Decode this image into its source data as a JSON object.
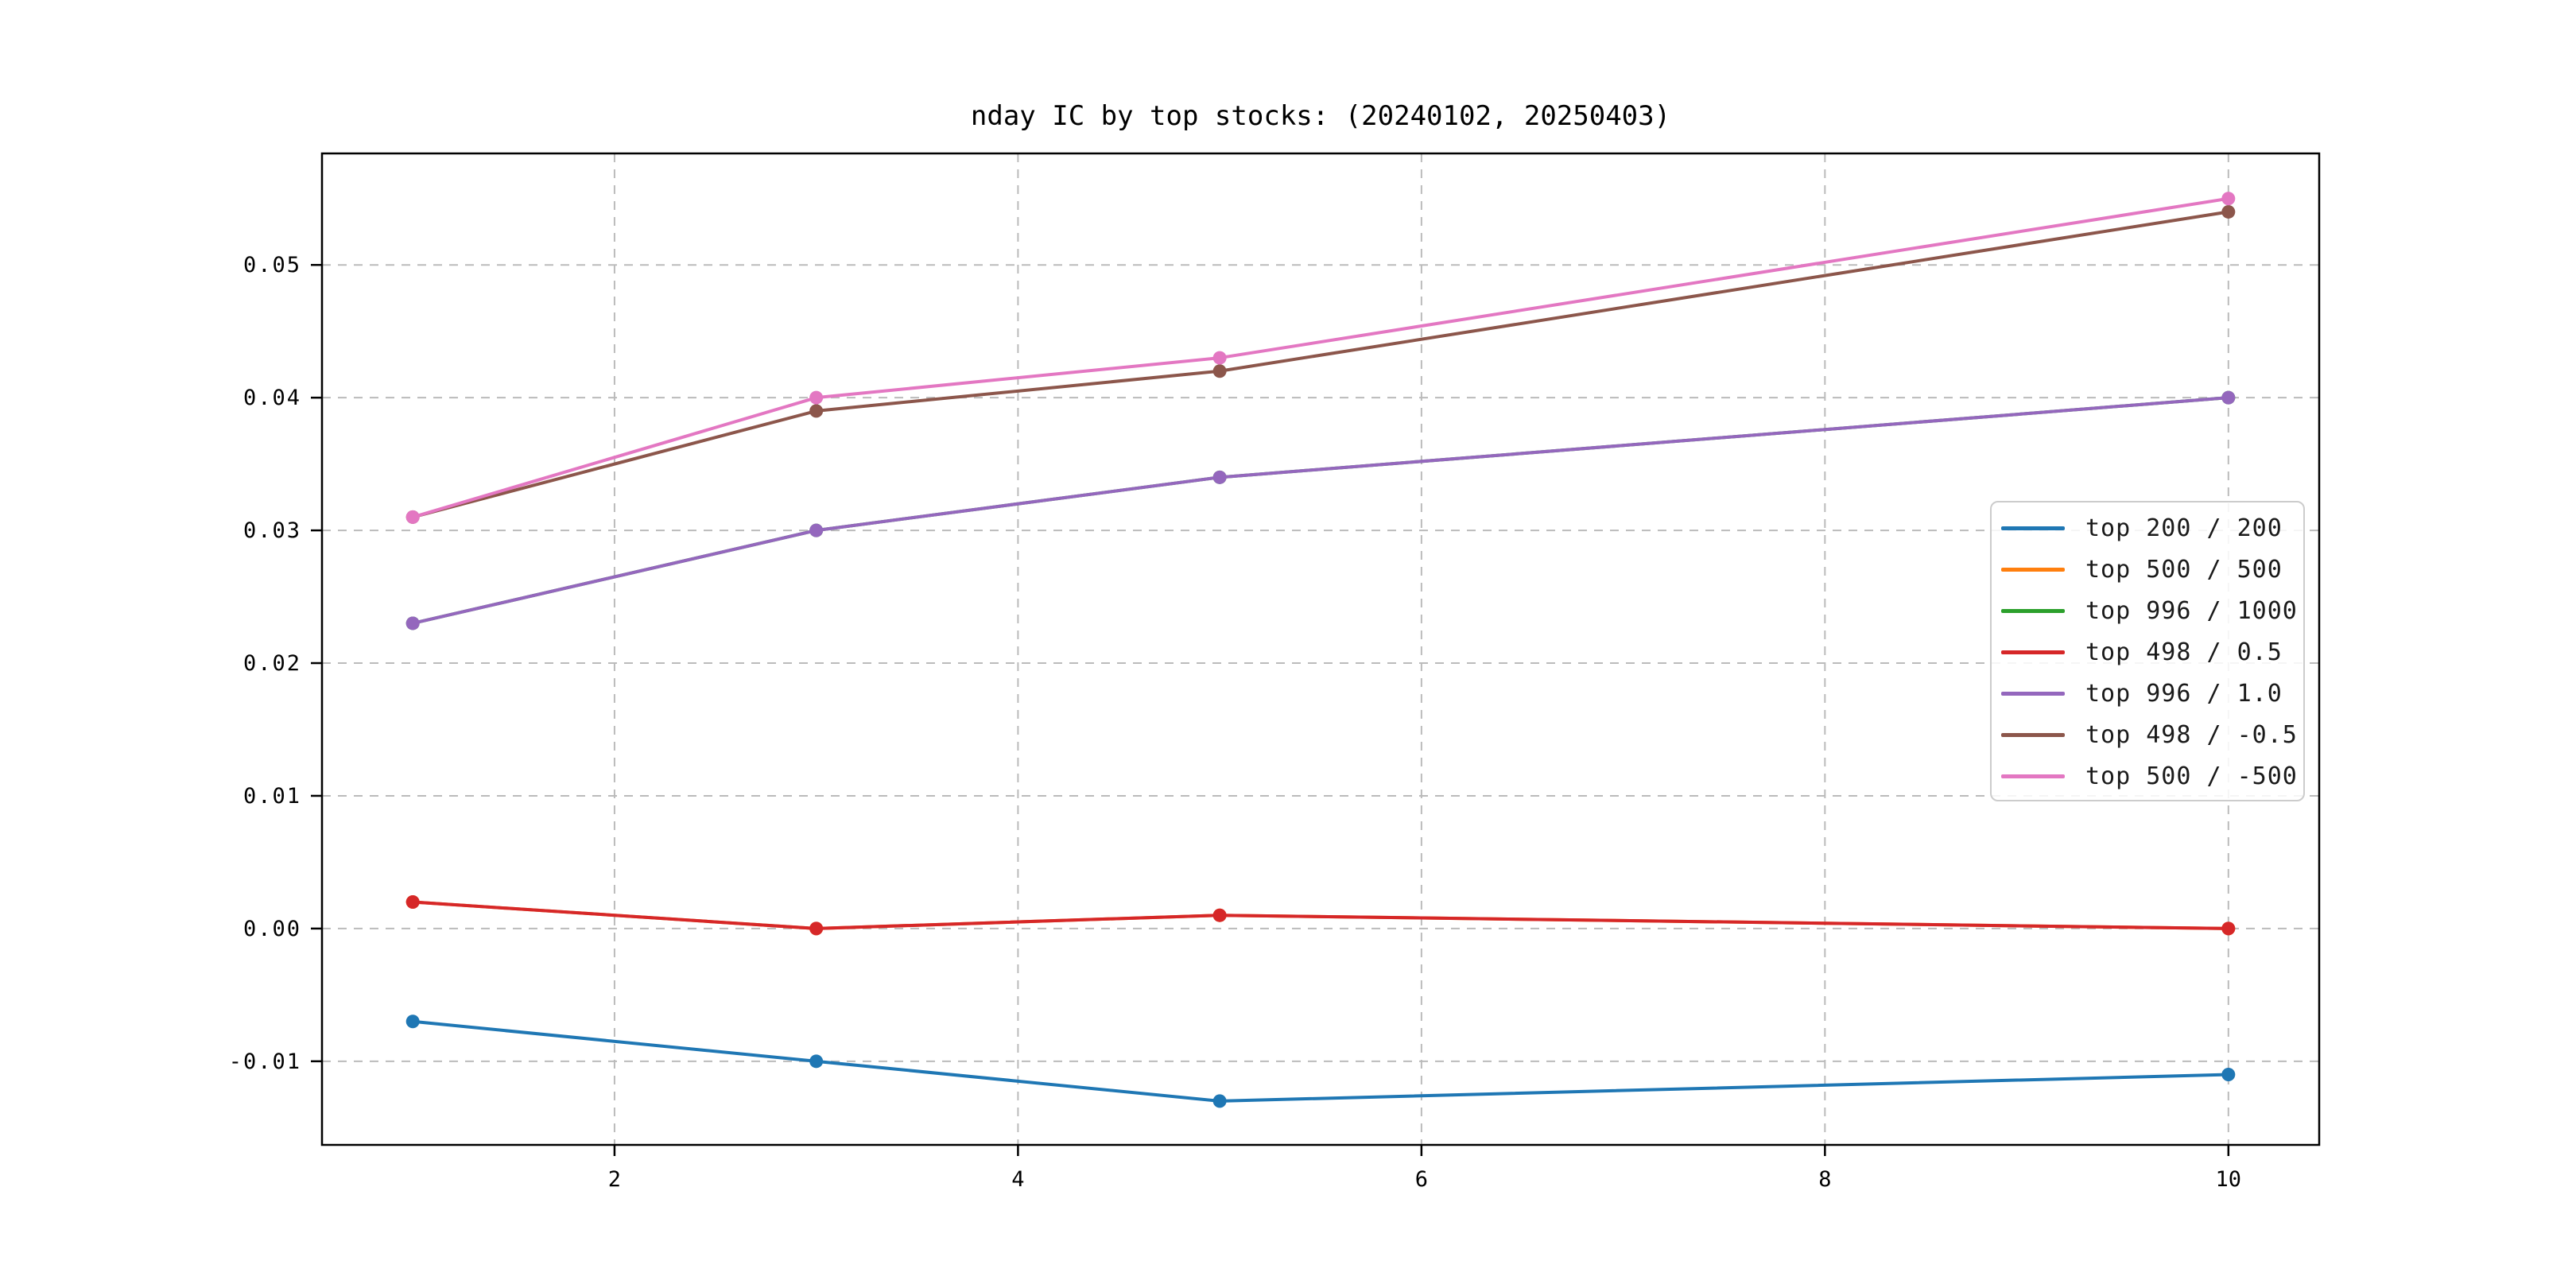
{
  "chart_data": {
    "type": "line",
    "title": "nday IC by top stocks: (20240102, 20250403)",
    "x": [
      1,
      3,
      5,
      10
    ],
    "series": [
      {
        "label": "top 200 / 200",
        "color": "#1f77b4",
        "values": [
          -0.007,
          -0.01,
          -0.013,
          -0.011
        ]
      },
      {
        "label": "top 500 / 500",
        "color": "#ff7f0e",
        "values": [
          0.002,
          0.0,
          0.001,
          0.0
        ]
      },
      {
        "label": "top 996 / 1000",
        "color": "#2ca02c",
        "values": [
          0.023,
          0.03,
          0.034,
          0.04
        ]
      },
      {
        "label": "top 498 / 0.5",
        "color": "#d62728",
        "values": [
          0.002,
          0.0,
          0.001,
          0.0
        ]
      },
      {
        "label": "top 996 / 1.0",
        "color": "#9467bd",
        "values": [
          0.023,
          0.03,
          0.034,
          0.04
        ]
      },
      {
        "label": "top 498 / -0.5",
        "color": "#8c564b",
        "values": [
          0.031,
          0.039,
          0.042,
          0.054
        ]
      },
      {
        "label": "top 500 / -500",
        "color": "#e377c2",
        "values": [
          0.031,
          0.04,
          0.043,
          0.055
        ]
      }
    ],
    "xlabel": "",
    "ylabel": "",
    "xlim": [
      0.55,
      10.45
    ],
    "ylim": [
      -0.0163,
      0.0584
    ],
    "xticks": {
      "values": [
        2,
        4,
        6,
        8,
        10
      ],
      "labels": [
        "2",
        "4",
        "6",
        "8",
        "10"
      ]
    },
    "yticks": {
      "values": [
        -0.01,
        0.0,
        0.01,
        0.02,
        0.03,
        0.04,
        0.05
      ],
      "labels": [
        "-0.01",
        "0.00",
        "0.01",
        "0.02",
        "0.03",
        "0.04",
        "0.05"
      ]
    },
    "grid": true,
    "grid_style": "dashed",
    "grid_color": "#bbbbbb",
    "legend_position": "center right",
    "marker": "o",
    "spine_color": "#000000"
  }
}
